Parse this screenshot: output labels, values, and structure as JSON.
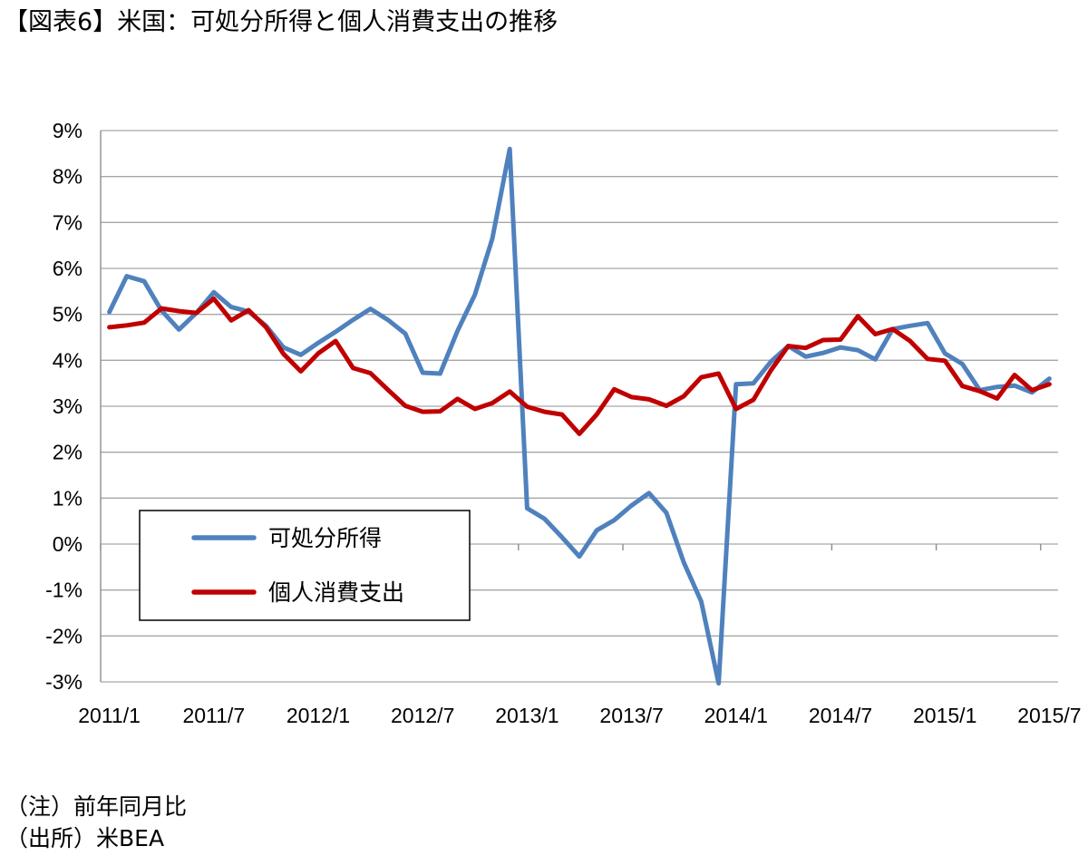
{
  "title": "【図表6】米国：可処分所得と個人消費支出の推移",
  "notes": {
    "note": "（注）前年同月比",
    "source": "（出所）米BEA"
  },
  "chart_data": {
    "type": "line",
    "ylim": [
      -3,
      9
    ],
    "yticks": [
      "9%",
      "8%",
      "7%",
      "6%",
      "5%",
      "4%",
      "3%",
      "2%",
      "1%",
      "0%",
      "-1%",
      "-2%",
      "-3%"
    ],
    "xticks": [
      "2011/1",
      "2011/7",
      "2012/1",
      "2012/7",
      "2013/1",
      "2013/7",
      "2014/1",
      "2014/7",
      "2015/1",
      "2015/7"
    ],
    "grid": true,
    "legend_position": "lower-left",
    "series": [
      {
        "name": "可処分所得",
        "color": "#4F81BD",
        "values": [
          5.05,
          5.83,
          5.72,
          5.08,
          4.67,
          5.03,
          5.48,
          5.16,
          5.06,
          4.75,
          4.28,
          4.12,
          4.38,
          4.62,
          4.88,
          5.12,
          4.88,
          4.58,
          3.73,
          3.71,
          4.64,
          5.43,
          6.65,
          8.6,
          0.78,
          0.55,
          0.15,
          -0.27,
          0.3,
          0.52,
          0.84,
          1.11,
          0.68,
          -0.4,
          -1.25,
          -3.03,
          3.48,
          3.5,
          3.97,
          4.31,
          4.08,
          4.16,
          4.28,
          4.22,
          4.02,
          4.68,
          4.75,
          4.81,
          4.15,
          3.92,
          3.35,
          3.42,
          3.45,
          3.3,
          3.6
        ]
      },
      {
        "name": "個人消費支出",
        "color": "#C00000",
        "values": [
          4.72,
          4.76,
          4.82,
          5.13,
          5.07,
          5.03,
          5.34,
          4.87,
          5.09,
          4.72,
          4.14,
          3.76,
          4.15,
          4.42,
          3.83,
          3.72,
          3.36,
          3.01,
          2.88,
          2.89,
          3.16,
          2.94,
          3.07,
          3.32,
          2.99,
          2.88,
          2.82,
          2.4,
          2.82,
          3.37,
          3.2,
          3.15,
          3.01,
          3.22,
          3.63,
          3.71,
          2.94,
          3.14,
          3.78,
          4.31,
          4.27,
          4.44,
          4.45,
          4.96,
          4.57,
          4.68,
          4.42,
          4.03,
          3.99,
          3.44,
          3.33,
          3.17,
          3.68,
          3.35,
          3.48
        ]
      }
    ]
  }
}
